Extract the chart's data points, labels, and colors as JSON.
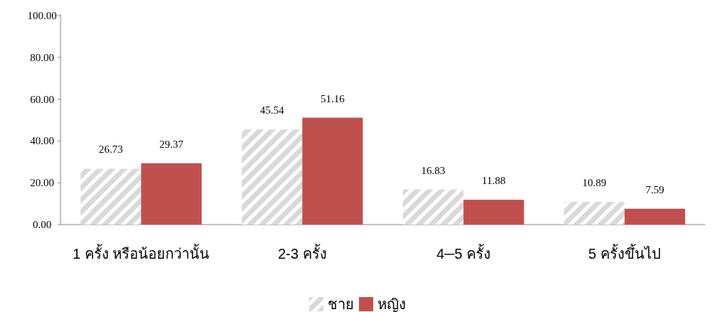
{
  "chart_data": {
    "type": "bar",
    "categories": [
      "1 ครั้ง หรือน้อยกว่านั้น",
      "2-3 ครั้ง",
      "4─5 ครั้ง",
      "5 ครั้งขึ้นไป"
    ],
    "series": [
      {
        "name": "ชาย",
        "color": "#d9d9d9",
        "values": [
          26.73,
          45.54,
          16.83,
          10.89
        ]
      },
      {
        "name": "หญิง",
        "color": "#c0504d",
        "values": [
          29.37,
          51.16,
          11.88,
          7.59
        ]
      }
    ],
    "ylim": [
      0,
      100
    ],
    "yticks": [
      {
        "value": 0,
        "label": "0.00"
      },
      {
        "value": 20,
        "label": "20.00"
      },
      {
        "value": 40,
        "label": "40.00"
      },
      {
        "value": 60,
        "label": "60.00"
      },
      {
        "value": 80,
        "label": "80.00"
      },
      {
        "value": 100,
        "label": "100.00"
      }
    ],
    "data_labels": true,
    "legend": "bottom",
    "grid": false
  }
}
